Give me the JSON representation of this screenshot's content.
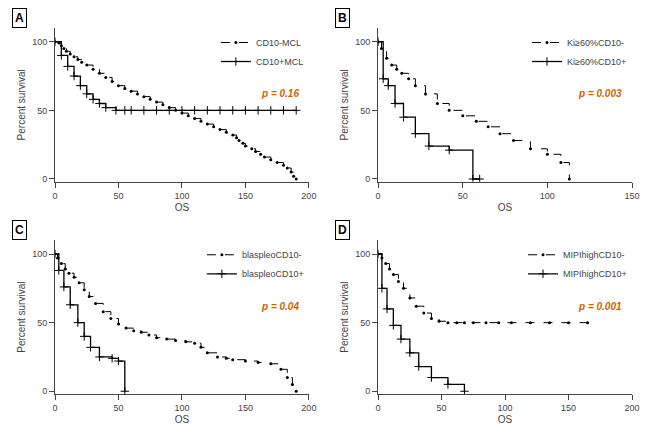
{
  "chart_data": [
    {
      "type": "step",
      "title": "A",
      "xlabel": "OS",
      "ylabel": "Percent survival",
      "xlim": [
        0,
        200
      ],
      "ylim": [
        -2,
        110
      ],
      "xticks": [
        0,
        50,
        100,
        150,
        200
      ],
      "yticks": [
        0,
        50,
        100
      ],
      "grid": false,
      "legend": "upper right",
      "series": [
        {
          "name": "CD10-MCL",
          "color": "#000000",
          "line_style": "dashed",
          "marker": "dot",
          "x": [
            0,
            3,
            5,
            7,
            9,
            12,
            15,
            18,
            21,
            25,
            30,
            35,
            40,
            45,
            50,
            55,
            60,
            65,
            70,
            75,
            80,
            85,
            90,
            95,
            100,
            105,
            110,
            115,
            120,
            125,
            130,
            135,
            140,
            143,
            145,
            148,
            150,
            155,
            158,
            162,
            165,
            170,
            175,
            180,
            183,
            186,
            188,
            190
          ],
          "values": [
            100,
            99,
            97,
            95,
            93,
            91,
            89,
            87,
            85,
            83,
            80,
            77,
            74,
            71,
            68,
            66,
            64,
            62,
            60,
            58,
            56,
            54,
            52,
            50,
            48,
            46,
            44,
            42,
            40,
            38,
            36,
            34,
            32,
            30,
            28,
            26,
            24,
            22,
            20,
            18,
            16,
            14,
            12,
            10,
            8,
            5,
            2,
            0
          ]
        },
        {
          "name": "CD10+MCL",
          "color": "#000000",
          "line_style": "solid",
          "marker": "cross",
          "x": [
            0,
            5,
            10,
            15,
            20,
            25,
            30,
            35,
            40,
            48,
            55,
            60,
            70,
            80,
            90,
            100,
            110,
            120,
            130,
            140,
            150,
            160,
            170,
            180,
            190
          ],
          "values": [
            100,
            90,
            82,
            75,
            68,
            62,
            58,
            55,
            52,
            50,
            50,
            50,
            50,
            50,
            50,
            50,
            50,
            50,
            50,
            50,
            50,
            50,
            50,
            50,
            50
          ]
        }
      ],
      "annotations": [
        {
          "text": "p = 0.16",
          "color": "#cc6600"
        }
      ]
    },
    {
      "type": "step",
      "title": "B",
      "xlabel": "OS",
      "ylabel": "Percent survival",
      "xlim": [
        0,
        150
      ],
      "ylim": [
        -2,
        110
      ],
      "xticks": [
        0,
        50,
        100,
        150
      ],
      "yticks": [
        0,
        50,
        100
      ],
      "grid": false,
      "legend": "upper right",
      "series": [
        {
          "name": "Ki≥60%CD10-",
          "color": "#000000",
          "line_style": "dashed",
          "marker": "dot",
          "x": [
            0,
            2,
            5,
            8,
            11,
            14,
            18,
            22,
            28,
            35,
            42,
            50,
            58,
            65,
            72,
            80,
            90,
            100,
            108,
            113
          ],
          "values": [
            100,
            95,
            88,
            83,
            80,
            77,
            73,
            68,
            62,
            55,
            50,
            46,
            42,
            38,
            33,
            28,
            22,
            18,
            12,
            0
          ]
        },
        {
          "name": "Ki≥60%CD10+",
          "color": "#000000",
          "line_style": "solid",
          "marker": "cross",
          "x": [
            0,
            3,
            6,
            10,
            15,
            22,
            30,
            42,
            56,
            60
          ],
          "values": [
            100,
            73,
            68,
            55,
            45,
            33,
            24,
            21,
            0,
            0
          ]
        }
      ],
      "annotations": [
        {
          "text": "p = 0.003",
          "color": "#cc6600"
        }
      ]
    },
    {
      "type": "step",
      "title": "C",
      "xlabel": "OS",
      "ylabel": "Percent survival",
      "xlim": [
        0,
        200
      ],
      "ylim": [
        -2,
        110
      ],
      "xticks": [
        0,
        50,
        100,
        150,
        200
      ],
      "yticks": [
        0,
        50,
        100
      ],
      "grid": false,
      "legend": "upper right",
      "series": [
        {
          "name": "blaspleoCD10-",
          "color": "#000000",
          "line_style": "dashed",
          "marker": "dot",
          "x": [
            0,
            2,
            5,
            8,
            11,
            15,
            19,
            23,
            27,
            32,
            38,
            44,
            50,
            56,
            62,
            68,
            74,
            80,
            88,
            95,
            103,
            110,
            115,
            120,
            128,
            135,
            140,
            150,
            160,
            170,
            178,
            183,
            187,
            190
          ],
          "values": [
            100,
            97,
            93,
            89,
            86,
            83,
            79,
            74,
            69,
            64,
            58,
            53,
            49,
            46,
            44,
            43,
            41,
            39,
            38,
            37,
            36,
            35,
            32,
            28,
            25,
            24,
            23,
            22,
            21,
            20,
            16,
            10,
            5,
            0
          ]
        },
        {
          "name": "blaspleoCD10+",
          "color": "#000000",
          "line_style": "solid",
          "marker": "cross",
          "x": [
            0,
            3,
            7,
            12,
            18,
            23,
            28,
            35,
            45,
            50,
            55
          ],
          "values": [
            100,
            88,
            76,
            63,
            50,
            40,
            32,
            25,
            24,
            22,
            0
          ]
        }
      ],
      "annotations": [
        {
          "text": "p = 0.04",
          "color": "#cc6600"
        }
      ]
    },
    {
      "type": "step",
      "title": "D",
      "xlabel": "OS",
      "ylabel": "Percent survival",
      "xlim": [
        0,
        200
      ],
      "ylim": [
        -2,
        110
      ],
      "xticks": [
        0,
        50,
        100,
        150,
        200
      ],
      "yticks": [
        0,
        50,
        100
      ],
      "grid": false,
      "legend": "upper right",
      "series": [
        {
          "name": "MIPIhighCD10-",
          "color": "#000000",
          "line_style": "dashed",
          "marker": "dot",
          "x": [
            0,
            3,
            6,
            9,
            12,
            16,
            20,
            25,
            30,
            36,
            42,
            48,
            55,
            62,
            68,
            75,
            85,
            95,
            105,
            120,
            135,
            150,
            165
          ],
          "values": [
            100,
            97,
            93,
            89,
            85,
            80,
            75,
            68,
            62,
            57,
            53,
            51,
            50,
            50,
            50,
            50,
            50,
            50,
            50,
            50,
            50,
            50,
            50
          ]
        },
        {
          "name": "MIPIhighCD10+",
          "color": "#000000",
          "line_style": "solid",
          "marker": "cross",
          "x": [
            0,
            3,
            7,
            12,
            18,
            25,
            32,
            42,
            55,
            68
          ],
          "values": [
            100,
            75,
            60,
            48,
            38,
            28,
            18,
            10,
            5,
            0
          ]
        }
      ],
      "annotations": [
        {
          "text": "p = 0.001",
          "color": "#cc6600"
        }
      ]
    }
  ]
}
